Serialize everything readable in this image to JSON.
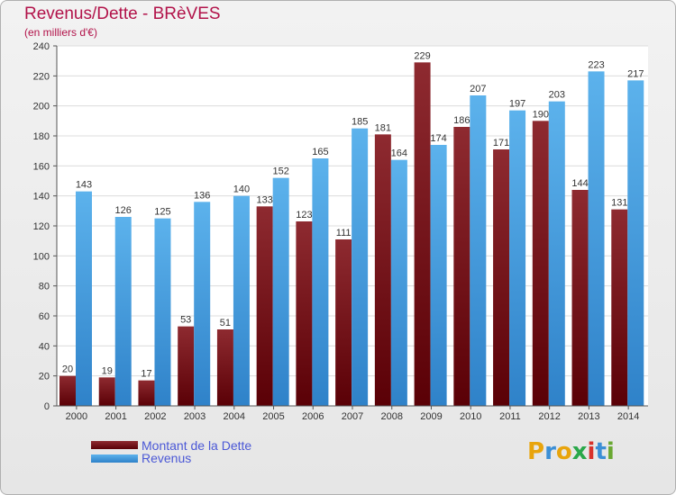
{
  "title": "Revenus/Dette - BRèVES",
  "subtitle": "(en milliers d'€)",
  "brand": {
    "text": "Proxiti",
    "letters": [
      "P",
      "r",
      "o",
      "x",
      "i",
      "t",
      "i"
    ],
    "colors": [
      "#e8a40c",
      "#3c8fd6",
      "#e8a40c",
      "#2aa84a",
      "#d8322b",
      "#3c8fd6",
      "#6aa832"
    ]
  },
  "legend": [
    {
      "label": "Montant de la Dette",
      "color": "#6b0f16"
    },
    {
      "label": "Revenus",
      "color": "#3a8fd8"
    }
  ],
  "chart_data": {
    "type": "bar",
    "categories": [
      "2000",
      "2001",
      "2002",
      "2003",
      "2004",
      "2005",
      "2006",
      "2007",
      "2008",
      "2009",
      "2010",
      "2011",
      "2012",
      "2013",
      "2014"
    ],
    "series": [
      {
        "name": "Montant de la Dette",
        "color": "#6b0f16",
        "values": [
          20,
          19,
          17,
          53,
          51,
          133,
          123,
          111,
          181,
          229,
          186,
          171,
          190,
          144,
          131
        ]
      },
      {
        "name": "Revenus",
        "color": "#3a8fd8",
        "values": [
          143,
          126,
          125,
          136,
          140,
          152,
          165,
          185,
          164,
          174,
          207,
          197,
          203,
          223,
          217
        ]
      }
    ],
    "yticks": [
      0,
      20,
      40,
      60,
      80,
      100,
      120,
      140,
      160,
      180,
      200,
      220,
      240
    ],
    "ylim": [
      0,
      240
    ],
    "grid": true,
    "legend_position": "bottom-left"
  }
}
